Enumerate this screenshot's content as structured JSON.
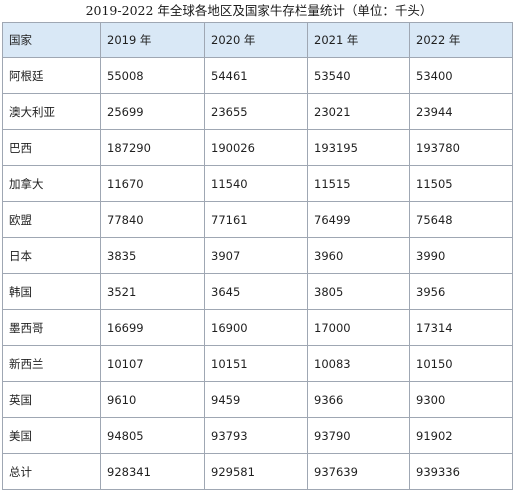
{
  "document": {
    "caption": "2019-2022 年全球各地区及国家牛存栏量统计（单位：千头）"
  },
  "table": {
    "headers": [
      "国家",
      "2019 年",
      "2020 年",
      "2021 年",
      "2022 年"
    ],
    "rows": [
      [
        "阿根廷",
        "55008",
        "54461",
        "53540",
        "53400"
      ],
      [
        "澳大利亚",
        "25699",
        "23655",
        "23021",
        "23944"
      ],
      [
        "巴西",
        "187290",
        "190026",
        "193195",
        "193780"
      ],
      [
        "加拿大",
        "11670",
        "11540",
        "11515",
        "11505"
      ],
      [
        "欧盟",
        "77840",
        "77161",
        "76499",
        "75648"
      ],
      [
        "日本",
        "3835",
        "3907",
        "3960",
        "3990"
      ],
      [
        "韩国",
        "3521",
        "3645",
        "3805",
        "3956"
      ],
      [
        "墨西哥",
        "16699",
        "16900",
        "17000",
        "17314"
      ],
      [
        "新西兰",
        "10107",
        "10151",
        "10083",
        "10150"
      ],
      [
        "英国",
        "9610",
        "9459",
        "9366",
        "9300"
      ],
      [
        "美国",
        "94805",
        "93793",
        "93790",
        "91902"
      ],
      [
        "总计",
        "928341",
        "929581",
        "937639",
        "939336"
      ]
    ]
  },
  "colors": {
    "header_background": "#d9e8f6",
    "border": "#9fa7b3"
  }
}
